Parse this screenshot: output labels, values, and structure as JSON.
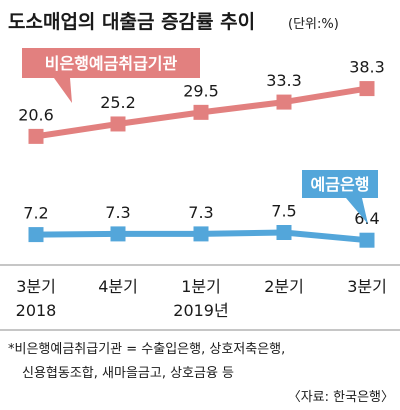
{
  "chart_data": {
    "type": "line",
    "title": "도소매업의 대출금 증감률 추이",
    "unit": "(단위:%)",
    "categories": [
      "3분기",
      "4분기",
      "1분기",
      "2분기",
      "3분기"
    ],
    "year_labels": [
      "2018",
      "",
      "2019년",
      "",
      ""
    ],
    "series": [
      {
        "name": "비은행예금취급기관",
        "color": "#e2807f",
        "values": [
          20.6,
          25.2,
          29.5,
          33.3,
          38.3
        ],
        "value_labels": [
          "20.6",
          "25.2",
          "29.5",
          "33.3",
          "38.3"
        ]
      },
      {
        "name": "예금은행",
        "color": "#53a6da",
        "values": [
          7.2,
          7.3,
          7.3,
          7.5,
          6.4
        ],
        "value_labels": [
          "7.2",
          "7.3",
          "7.3",
          "7.5",
          "6.4"
        ]
      }
    ],
    "grid": false
  },
  "footnote": {
    "line1": "*비은행예금취급기관 = 수출입은행, 상호저축은행,",
    "line2": "신용협동조합, 새마을금고, 상호금융 등",
    "source": "〈자료: 한국은행〉"
  },
  "colors": {
    "background": "#ffffff",
    "text": "#1a1a1a",
    "divider": "#8c8c8c"
  }
}
